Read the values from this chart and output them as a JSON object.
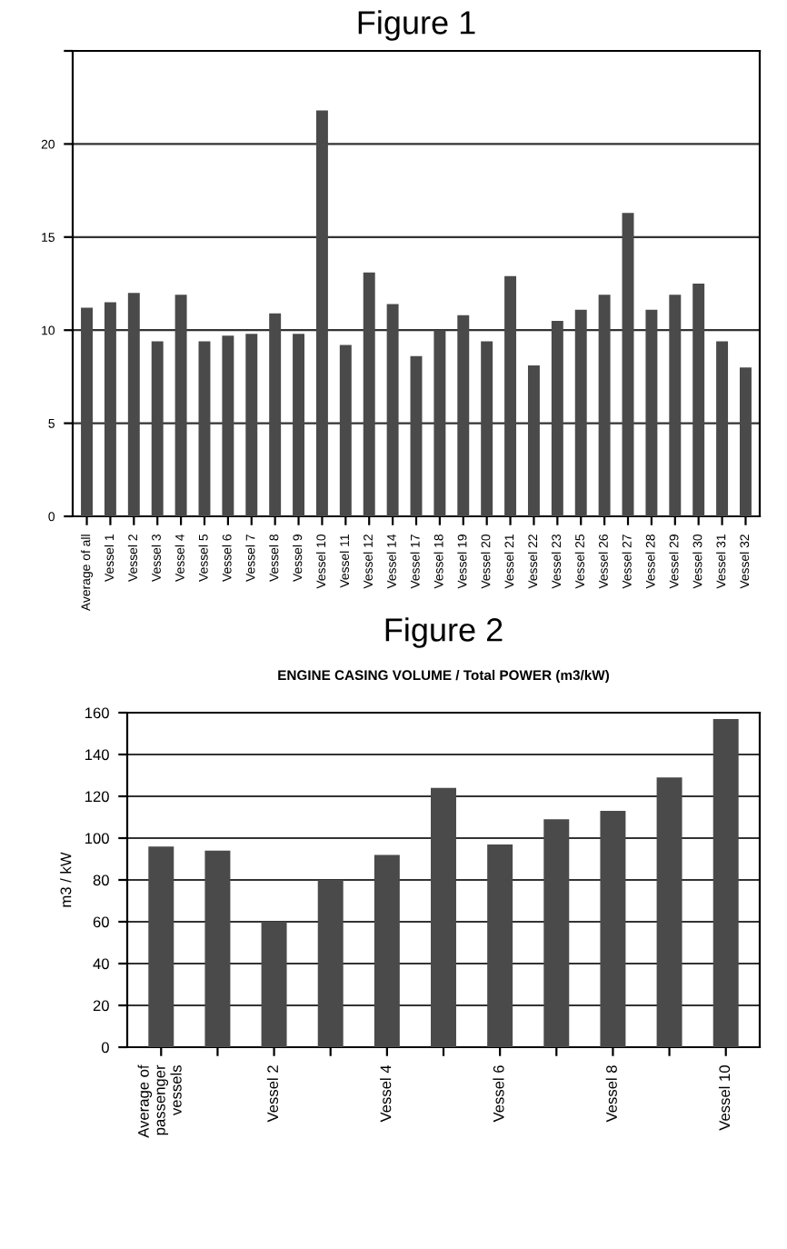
{
  "chart_data": [
    {
      "type": "bar",
      "title": "Figure 1",
      "categories": [
        "Average of all",
        "Vessel 1",
        "Vessel 2",
        "Vessel 3",
        "Vessel 4",
        "Vessel 5",
        "Vessel 6",
        "Vessel 7",
        "Vessel 8",
        "Vessel 9",
        "Vessel 10",
        "Vessel 11",
        "Vessel 12",
        "Vessel 14",
        "Vessel 17",
        "Vessel 18",
        "Vessel 19",
        "Vessel 20",
        "Vessel 21",
        "Vessel 22",
        "Vessel 23",
        "Vessel 25",
        "Vessel 26",
        "Vessel 27",
        "Vessel 28",
        "Vessel 29",
        "Vessel 30",
        "Vessel 31",
        "Vessel 32"
      ],
      "values": [
        11.2,
        11.5,
        12.0,
        9.4,
        11.9,
        9.4,
        9.7,
        9.8,
        10.9,
        9.8,
        21.8,
        9.2,
        13.1,
        11.4,
        8.6,
        10.0,
        10.8,
        9.4,
        12.9,
        8.1,
        10.5,
        11.1,
        11.9,
        16.3,
        11.1,
        11.9,
        12.5,
        9.4,
        8.0
      ],
      "color": "#4a4a4a",
      "ylim": [
        0,
        25
      ],
      "yticks": [
        0,
        5,
        10,
        15,
        20,
        {
          "value": 25,
          "label": null
        }
      ],
      "grid": "y"
    },
    {
      "type": "bar",
      "title": "Figure 2",
      "subtitle": "ENGINE CASING VOLUME / Total POWER (m3/kW)",
      "ylabel": "m3 / kW",
      "categories": [
        "Average of passenger vessels",
        null,
        "Vessel 2",
        null,
        "Vessel 4",
        null,
        "Vessel 6",
        null,
        "Vessel 8",
        null,
        "Vessel 10"
      ],
      "values": [
        96,
        94,
        60,
        80,
        92,
        124,
        97,
        109,
        113,
        129,
        157
      ],
      "color": "#4a4a4a",
      "ylim": [
        0,
        160
      ],
      "yticks": [
        0,
        20,
        40,
        60,
        80,
        100,
        120,
        140,
        160
      ],
      "grid": "y"
    }
  ]
}
